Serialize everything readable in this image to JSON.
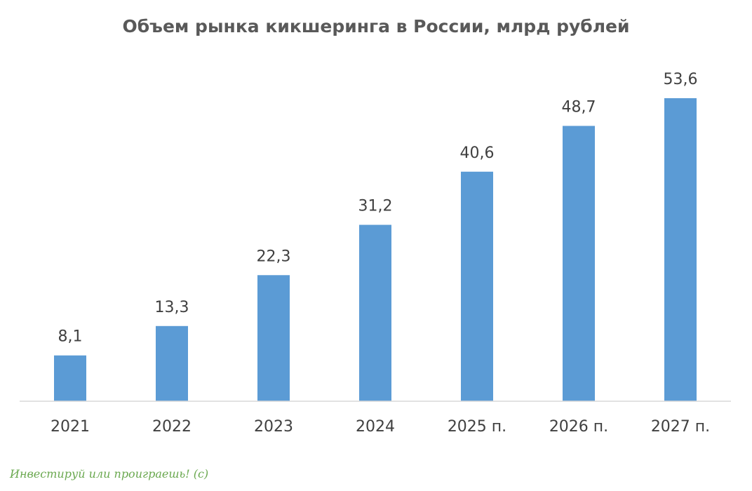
{
  "chart_data": {
    "type": "bar",
    "title": "Объем рынка кикшеринга в России, млрд рублей",
    "categories": [
      "2021",
      "2022",
      "2023",
      "2024",
      "2025 п.",
      "2026 п.",
      "2027 п."
    ],
    "values": [
      8.1,
      13.3,
      22.3,
      31.2,
      40.6,
      48.7,
      53.6
    ],
    "data_labels": [
      "8,1",
      "13,3",
      "22,3",
      "31,2",
      "40,6",
      "48,7",
      "53,6"
    ],
    "ylim": [
      0,
      60
    ],
    "grid": false,
    "legend": "none",
    "bar_color": "#5b9bd5"
  },
  "watermark": "Инвестируй или проиграешь! (с)"
}
